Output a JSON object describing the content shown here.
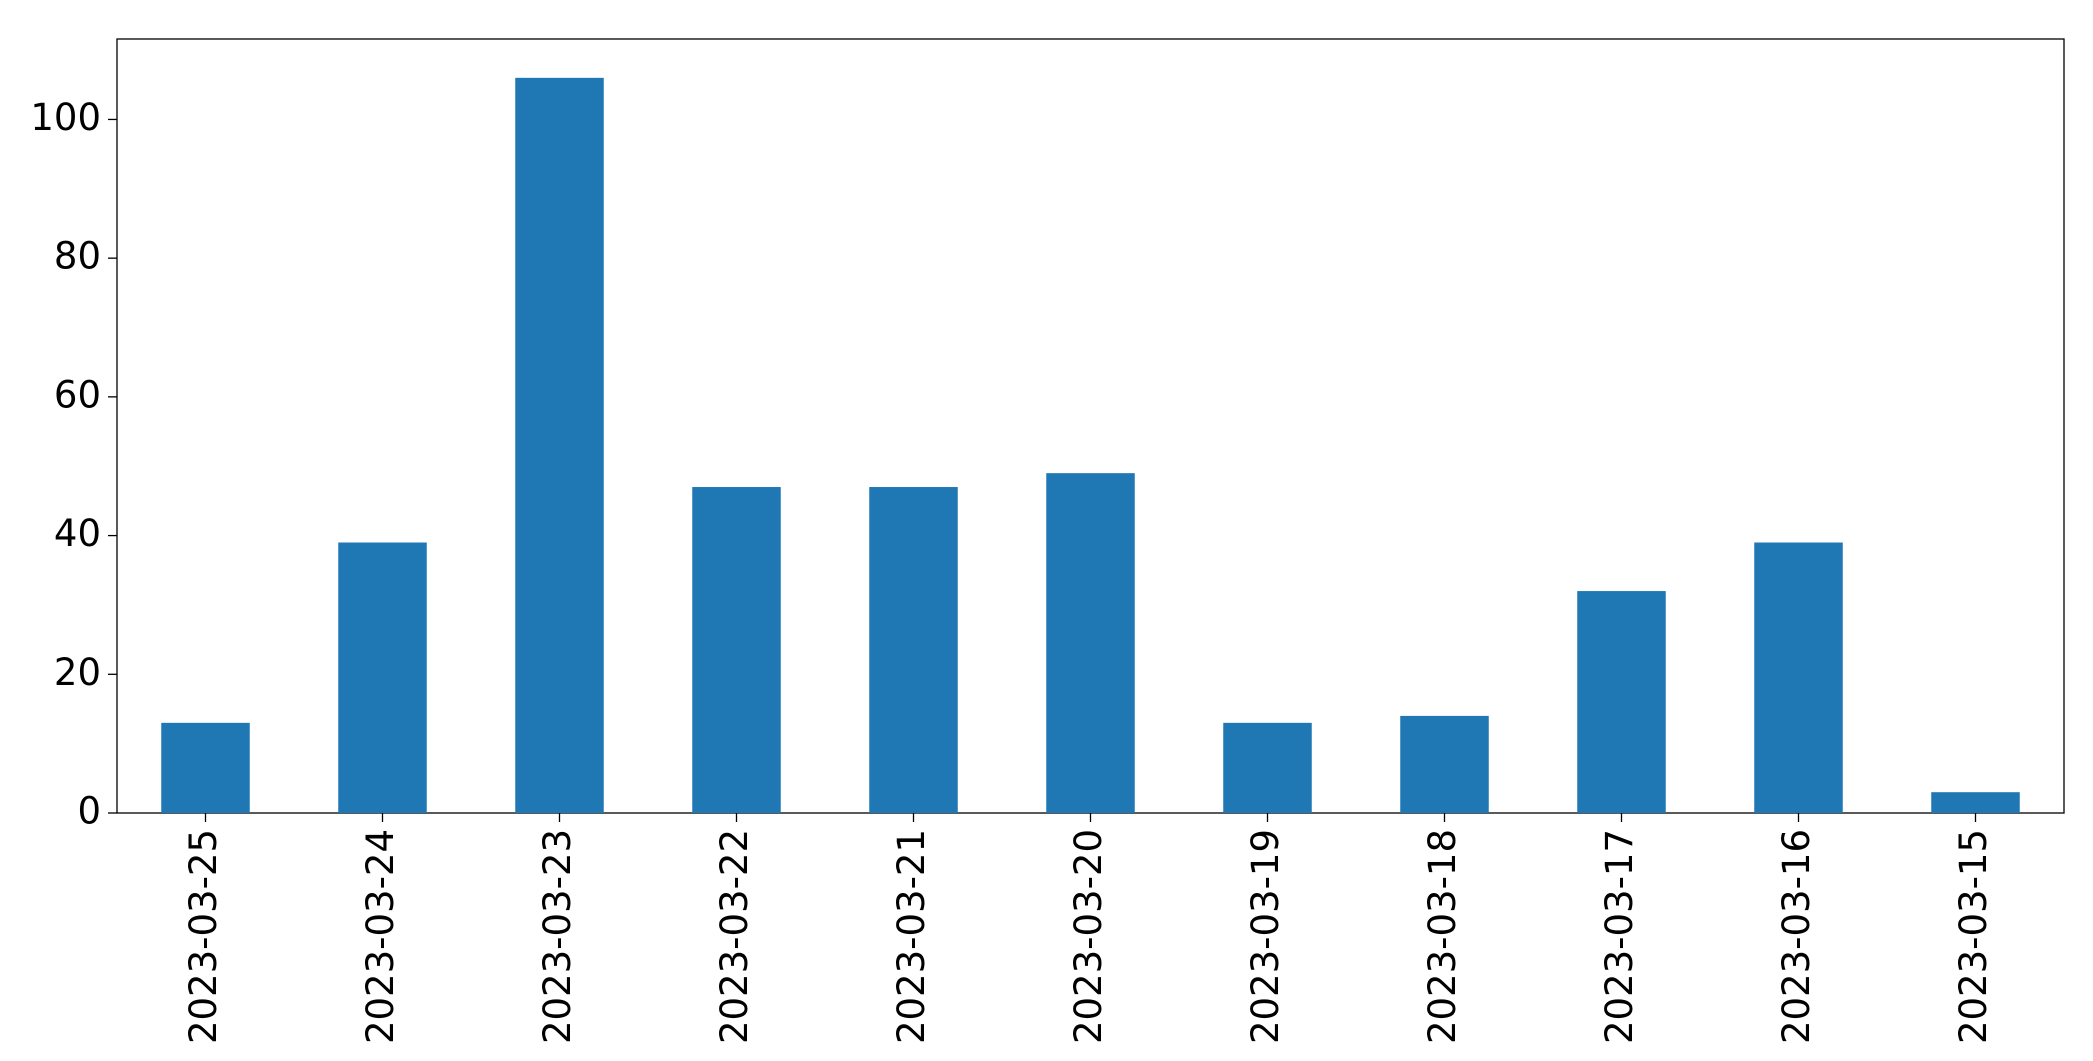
{
  "chart_data": {
    "type": "bar",
    "categories": [
      "2023-03-25",
      "2023-03-24",
      "2023-03-23",
      "2023-03-22",
      "2023-03-21",
      "2023-03-20",
      "2023-03-19",
      "2023-03-18",
      "2023-03-17",
      "2023-03-16",
      "2023-03-15"
    ],
    "values": [
      13,
      39,
      106,
      47,
      47,
      49,
      13,
      14,
      32,
      39,
      3
    ],
    "color": "#1f77b4",
    "ylim": [
      0,
      111.6
    ],
    "yticks": [
      0,
      20,
      40,
      60,
      80,
      100
    ],
    "grid": false
  }
}
